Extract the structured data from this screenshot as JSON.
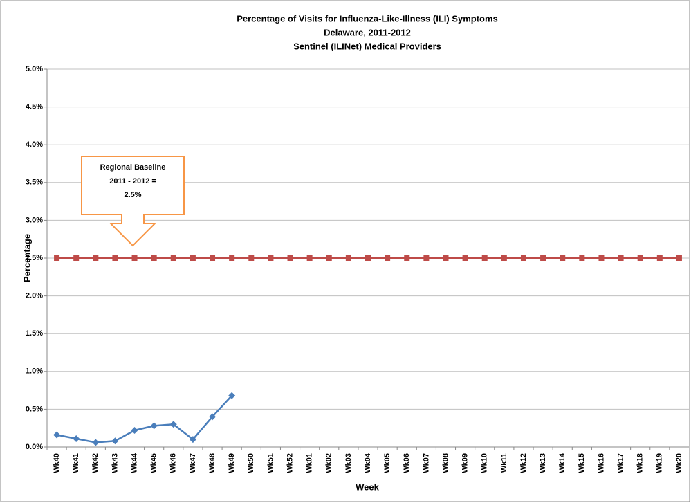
{
  "chart_data": {
    "type": "line",
    "title": [
      "Percentage of Visits for Influenza-Like-Illness (ILI) Symptoms",
      "Delaware, 2011-2012",
      "Sentinel (ILINet) Medical Providers"
    ],
    "x_label": "Week",
    "y_label": "Percentage",
    "categories": [
      "Wk40",
      "Wk41",
      "Wk42",
      "Wk43",
      "Wk44",
      "Wk45",
      "Wk46",
      "Wk47",
      "Wk48",
      "Wk49",
      "Wk50",
      "Wk51",
      "Wk52",
      "Wk01",
      "Wk02",
      "Wk03",
      "Wk04",
      "Wk05",
      "Wk06",
      "Wk07",
      "Wk08",
      "Wk09",
      "Wk10",
      "Wk11",
      "Wk12",
      "Wk13",
      "Wk14",
      "Wk15",
      "Wk16",
      "Wk17",
      "Wk18",
      "Wk19",
      "Wk20"
    ],
    "series": [
      {
        "color": "#4a7ebb",
        "marker": "diamond",
        "values": [
          0.16,
          0.11,
          0.06,
          0.08,
          0.22,
          0.28,
          0.3,
          0.1,
          0.4,
          0.68,
          null,
          null,
          null,
          null,
          null,
          null,
          null,
          null,
          null,
          null,
          null,
          null,
          null,
          null,
          null,
          null,
          null,
          null,
          null,
          null,
          null,
          null,
          null
        ]
      },
      {
        "color": "#be4b48",
        "marker": "square",
        "values": [
          2.5,
          2.5,
          2.5,
          2.5,
          2.5,
          2.5,
          2.5,
          2.5,
          2.5,
          2.5,
          2.5,
          2.5,
          2.5,
          2.5,
          2.5,
          2.5,
          2.5,
          2.5,
          2.5,
          2.5,
          2.5,
          2.5,
          2.5,
          2.5,
          2.5,
          2.5,
          2.5,
          2.5,
          2.5,
          2.5,
          2.5,
          2.5,
          2.5
        ]
      }
    ],
    "annotation": [
      "Regional Baseline",
      "2011 - 2012 =",
      "2.5%"
    ],
    "ylim": [
      0,
      5
    ],
    "yticks": [
      {
        "value": 0,
        "label": "0.0%"
      },
      {
        "value": 0.5,
        "label": "0.5%"
      },
      {
        "value": 1,
        "label": "1.0%"
      },
      {
        "value": 1.5,
        "label": "1.5%"
      },
      {
        "value": 2,
        "label": "2.0%"
      },
      {
        "value": 2.5,
        "label": "2.5%"
      },
      {
        "value": 3,
        "label": "3.0%"
      },
      {
        "value": 3.5,
        "label": "3.5%"
      },
      {
        "value": 4,
        "label": "4.0%"
      },
      {
        "value": 4.5,
        "label": "4.5%"
      },
      {
        "value": 5,
        "label": "5.0%"
      }
    ],
    "grid": true
  }
}
